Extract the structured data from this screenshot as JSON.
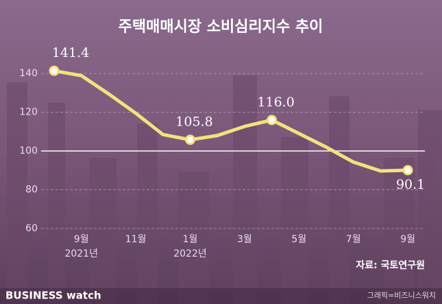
{
  "chart_data": {
    "type": "line",
    "title": "주택매매시장 소비심리지수 추이",
    "categories": [
      null,
      "9월",
      null,
      "11월",
      null,
      "1월",
      null,
      "3월",
      null,
      "5월",
      null,
      "7월",
      null,
      "9월"
    ],
    "category_years": [
      null,
      "2021년",
      null,
      null,
      null,
      "2022년",
      null,
      null,
      null,
      null,
      null,
      null,
      null,
      null
    ],
    "values": [
      141.4,
      138.9,
      129.5,
      119.5,
      108.5,
      105.8,
      108.0,
      112.7,
      116.0,
      109.0,
      102.0,
      94.3,
      89.7,
      90.1
    ],
    "value_labels": [
      "141.4",
      null,
      null,
      null,
      null,
      "105.8",
      null,
      null,
      "116.0",
      null,
      null,
      null,
      null,
      "90.1"
    ],
    "color": "#f3e27c",
    "ylim": [
      60,
      145
    ],
    "yticks": [
      60,
      80,
      100,
      120,
      140
    ],
    "reference_line": 100,
    "source": "자료: 국토연구원",
    "brand": "BUSINESS watch",
    "credit": "그래픽=비즈니스워치"
  }
}
